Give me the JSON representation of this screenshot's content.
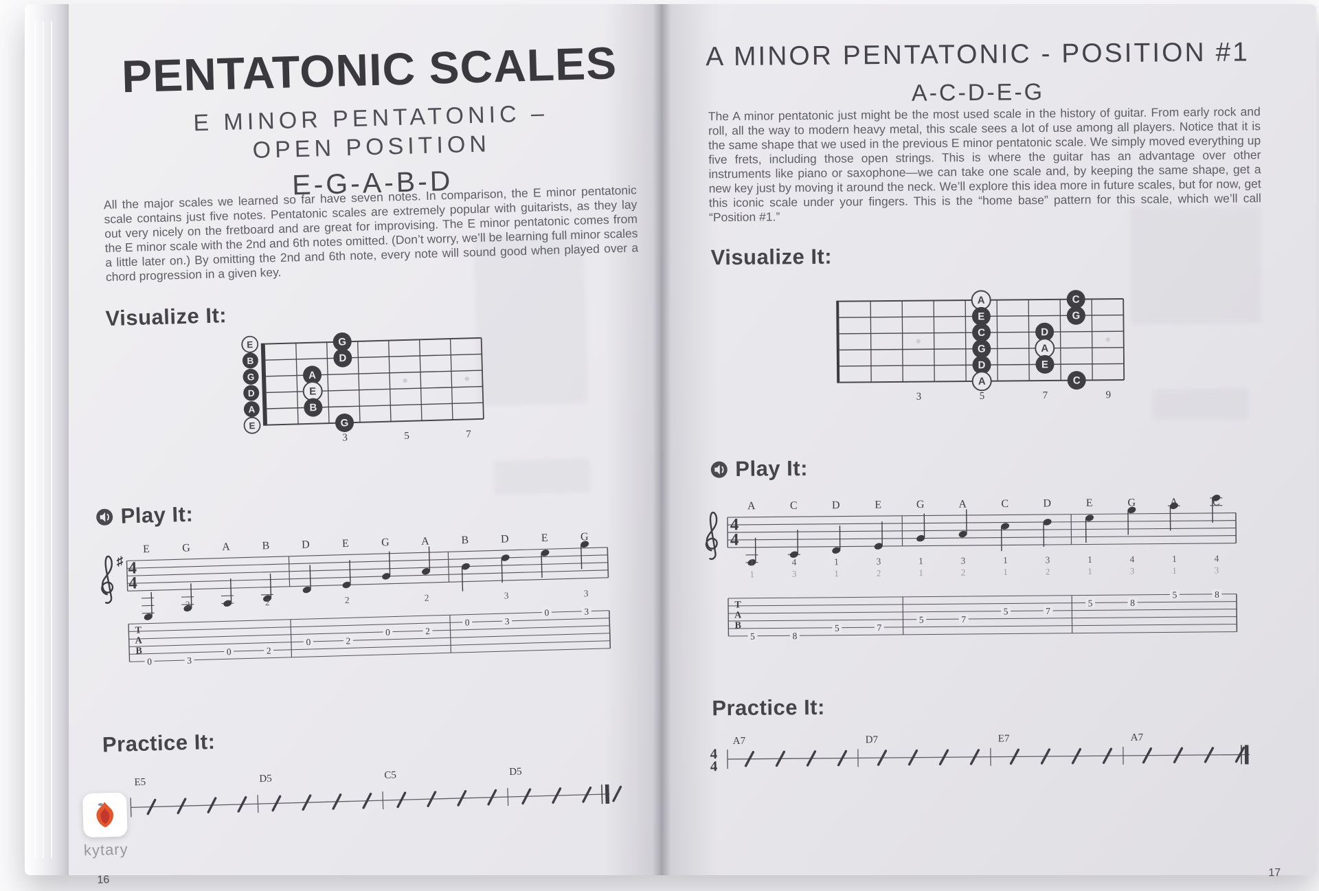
{
  "watermark": {
    "brand": "kytary"
  },
  "left": {
    "page_number": "16",
    "title": "PENTATONIC SCALES",
    "subtitle1": "E MINOR PENTATONIC –",
    "subtitle2": "OPEN POSITION",
    "scale_notes": "E-G-A-B-D",
    "intro": "All the major scales we learned so far have seven notes. In comparison, the E minor pentatonic scale contains just five notes. Pentatonic scales are extremely popular with guitarists, as they lay out very nicely on the fretboard and are great for improvising. The E minor pentatonic comes from the E minor scale with the 2nd and 6th notes omitted. (Don’t worry, we’ll be learning full minor scales a little later on.) By omitting the 2nd and 6th note, every note will sound good when played over a chord progression in a given key.",
    "visualize_heading": "Visualize It:",
    "play_heading": "Play It:",
    "practice_heading": "Practice It:",
    "fretboard": {
      "frets": 7,
      "fret_numbers": [
        3,
        5,
        7
      ],
      "inlays": [
        5,
        7
      ],
      "open_strings": [
        {
          "label": "E",
          "root": true
        },
        {
          "label": "B",
          "root": false
        },
        {
          "label": "G",
          "root": false
        },
        {
          "label": "D",
          "root": false
        },
        {
          "label": "A",
          "root": false
        },
        {
          "label": "E",
          "root": true
        }
      ],
      "dots": [
        {
          "string": 1,
          "fret": 3,
          "label": "G",
          "root": false
        },
        {
          "string": 2,
          "fret": 3,
          "label": "D",
          "root": false
        },
        {
          "string": 3,
          "fret": 2,
          "label": "A",
          "root": false
        },
        {
          "string": 4,
          "fret": 2,
          "label": "E",
          "root": true
        },
        {
          "string": 5,
          "fret": 2,
          "label": "B",
          "root": false
        },
        {
          "string": 6,
          "fret": 3,
          "label": "G",
          "root": false
        }
      ]
    },
    "play": {
      "time_signature": [
        "4",
        "4"
      ],
      "key_sharps": 1,
      "note_names": [
        "E",
        "G",
        "A",
        "B",
        "D",
        "E",
        "G",
        "A",
        "B",
        "D",
        "E",
        "G"
      ],
      "steps": [
        -7,
        -5,
        -4,
        -3,
        -1,
        0,
        2,
        3,
        4,
        6,
        7,
        9
      ],
      "fingerings": [
        {
          "index": 1,
          "label": "3"
        },
        {
          "index": 3,
          "label": "2"
        },
        {
          "index": 5,
          "label": "2"
        },
        {
          "index": 7,
          "label": "2"
        },
        {
          "index": 9,
          "label": "3"
        },
        {
          "index": 11,
          "label": "3"
        }
      ],
      "tab_label": "TAB",
      "tab": [
        {
          "string": 6,
          "fret": "0"
        },
        {
          "string": 6,
          "fret": "3"
        },
        {
          "string": 5,
          "fret": "0"
        },
        {
          "string": 5,
          "fret": "2"
        },
        {
          "string": 4,
          "fret": "0"
        },
        {
          "string": 4,
          "fret": "2"
        },
        {
          "string": 3,
          "fret": "0"
        },
        {
          "string": 3,
          "fret": "2"
        },
        {
          "string": 2,
          "fret": "0"
        },
        {
          "string": 2,
          "fret": "3"
        },
        {
          "string": 1,
          "fret": "0"
        },
        {
          "string": 1,
          "fret": "3"
        }
      ]
    },
    "practice": {
      "time_signature": [
        "4",
        "4"
      ],
      "chords": [
        "E5",
        "D5",
        "C5",
        "D5"
      ],
      "slashes_per_bar": 4
    }
  },
  "right": {
    "page_number": "17",
    "title": "A MINOR PENTATONIC - POSITION #1",
    "scale_notes": "A-C-D-E-G",
    "intro": "The A minor pentatonic just might be the most used scale in the history of guitar. From early rock and roll, all the way to modern heavy metal, this scale sees a lot of use among all players. Notice that it is the same shape that we used in the previous E minor pentatonic scale. We simply moved everything up five frets, including those open strings. This is where the guitar has an advantage over other instruments like piano or saxophone—we can take one scale and, by keeping the same shape, get a new key just by moving it around the neck. We’ll explore this idea more in future scales, but for now, get this iconic scale under your fingers. This is the “home base” pattern for this scale, which we’ll call “Position #1.”",
    "visualize_heading": "Visualize It:",
    "play_heading": "Play It:",
    "practice_heading": "Practice It:",
    "fretboard": {
      "frets": 9,
      "fret_numbers": [
        3,
        5,
        7,
        9
      ],
      "inlays": [
        3,
        5,
        7,
        9
      ],
      "open_strings": [],
      "dots": [
        {
          "string": 1,
          "fret": 5,
          "label": "A",
          "root": true
        },
        {
          "string": 1,
          "fret": 8,
          "label": "C",
          "root": false
        },
        {
          "string": 2,
          "fret": 5,
          "label": "E",
          "root": false
        },
        {
          "string": 2,
          "fret": 8,
          "label": "G",
          "root": false
        },
        {
          "string": 3,
          "fret": 5,
          "label": "C",
          "root": false
        },
        {
          "string": 3,
          "fret": 7,
          "label": "D",
          "root": false
        },
        {
          "string": 4,
          "fret": 5,
          "label": "G",
          "root": false
        },
        {
          "string": 4,
          "fret": 7,
          "label": "A",
          "root": true
        },
        {
          "string": 5,
          "fret": 5,
          "label": "D",
          "root": false
        },
        {
          "string": 5,
          "fret": 7,
          "label": "E",
          "root": false
        },
        {
          "string": 6,
          "fret": 5,
          "label": "A",
          "root": true
        },
        {
          "string": 6,
          "fret": 8,
          "label": "C",
          "root": false
        }
      ]
    },
    "play": {
      "time_signature": [
        "4",
        "4"
      ],
      "key_sharps": 0,
      "note_names": [
        "A",
        "C",
        "D",
        "E",
        "G",
        "A",
        "C",
        "D",
        "E",
        "G",
        "A",
        "C"
      ],
      "steps": [
        -4,
        -2,
        -1,
        0,
        2,
        3,
        5,
        6,
        7,
        9,
        10,
        12
      ],
      "fingerings_row1": [
        "1",
        "4",
        "1",
        "3",
        "1",
        "3",
        "1",
        "3",
        "1",
        "4",
        "1",
        "4"
      ],
      "fingerings_row2": [
        "1",
        "3",
        "1",
        "2",
        "1",
        "2",
        "1",
        "2",
        "1",
        "3",
        "1",
        "3"
      ],
      "tab_label": "TAB",
      "tab": [
        {
          "string": 6,
          "fret": "5"
        },
        {
          "string": 6,
          "fret": "8"
        },
        {
          "string": 5,
          "fret": "5"
        },
        {
          "string": 5,
          "fret": "7"
        },
        {
          "string": 4,
          "fret": "5"
        },
        {
          "string": 4,
          "fret": "7"
        },
        {
          "string": 3,
          "fret": "5"
        },
        {
          "string": 3,
          "fret": "7"
        },
        {
          "string": 2,
          "fret": "5"
        },
        {
          "string": 2,
          "fret": "8"
        },
        {
          "string": 1,
          "fret": "5"
        },
        {
          "string": 1,
          "fret": "8"
        }
      ]
    },
    "practice": {
      "time_signature": [
        "4",
        "4"
      ],
      "chords": [
        "A7",
        "D7",
        "E7",
        "A7"
      ],
      "slashes_per_bar": 4
    }
  }
}
